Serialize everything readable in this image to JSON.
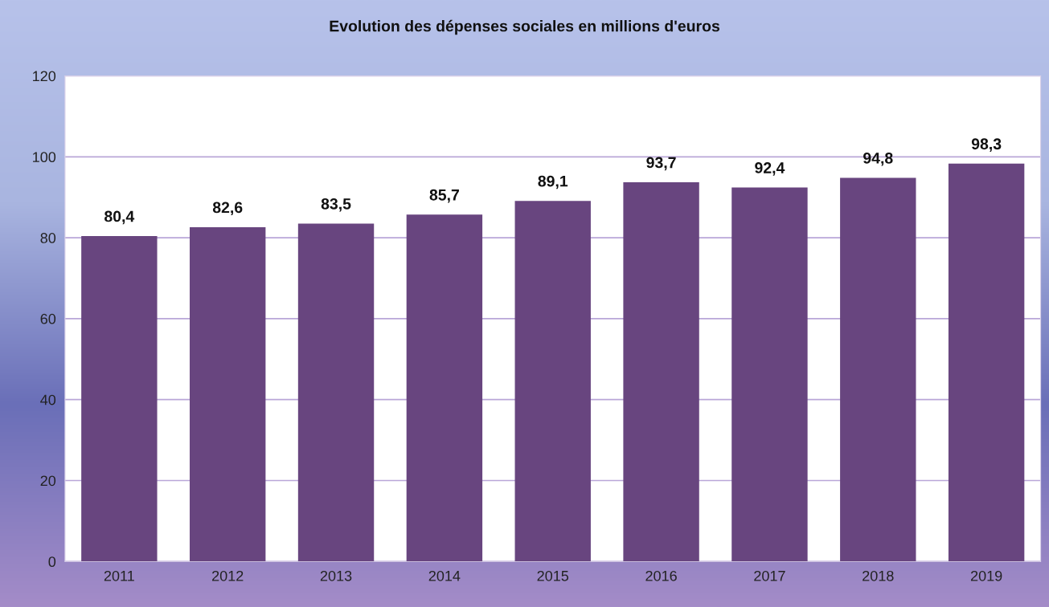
{
  "chart_data": {
    "type": "bar",
    "title": "Evolution des dépenses sociales en millions d'euros",
    "categories": [
      "2011",
      "2012",
      "2013",
      "2014",
      "2015",
      "2016",
      "2017",
      "2018",
      "2019"
    ],
    "values": [
      80.4,
      82.6,
      83.5,
      85.7,
      89.1,
      93.7,
      92.4,
      94.8,
      98.3
    ],
    "value_labels": [
      "80,4",
      "82,6",
      "83,5",
      "85,7",
      "89,1",
      "93,7",
      "92,4",
      "94,8",
      "98,3"
    ],
    "color": "#68457f",
    "ylim": [
      0,
      120
    ],
    "yticks": [
      0,
      20,
      40,
      60,
      80,
      100,
      120
    ],
    "grid": "y"
  }
}
